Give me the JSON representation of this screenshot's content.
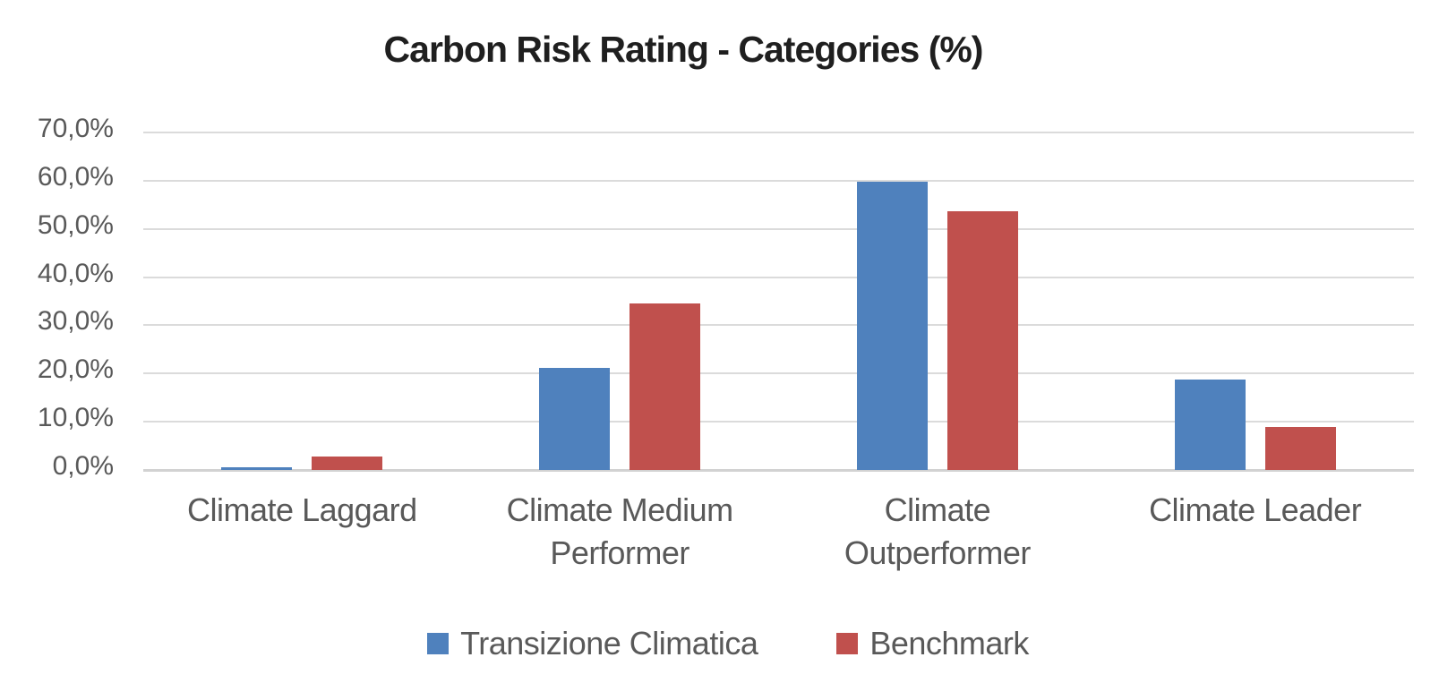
{
  "chart_data": {
    "type": "bar",
    "title": "Carbon Risk Rating - Categories (%)",
    "categories": [
      "Climate Laggard",
      "Climate Medium Performer",
      "Climate Outperformer",
      "Climate Leader"
    ],
    "series": [
      {
        "name": "Transizione Climatica",
        "color": "#4F81BD",
        "values": [
          0.5,
          21.2,
          59.8,
          18.8
        ]
      },
      {
        "name": "Benchmark",
        "color": "#C0504D",
        "values": [
          2.8,
          34.5,
          53.7,
          9.0
        ]
      }
    ],
    "ylim": [
      0,
      70
    ],
    "ytick_step": 10,
    "ytick_labels": [
      "0,0%",
      "10,0%",
      "20,0%",
      "30,0%",
      "40,0%",
      "50,0%",
      "60,0%",
      "70,0%"
    ],
    "grid": true,
    "legend_position": "bottom",
    "number_format": "comma-decimal-percent"
  },
  "style": {
    "background": "#FFFFFF",
    "title_color": "#1F1F1F",
    "label_color": "#595959",
    "gridline_color": "#DBDBDB",
    "axis_line_color": "#D2D2D2"
  }
}
